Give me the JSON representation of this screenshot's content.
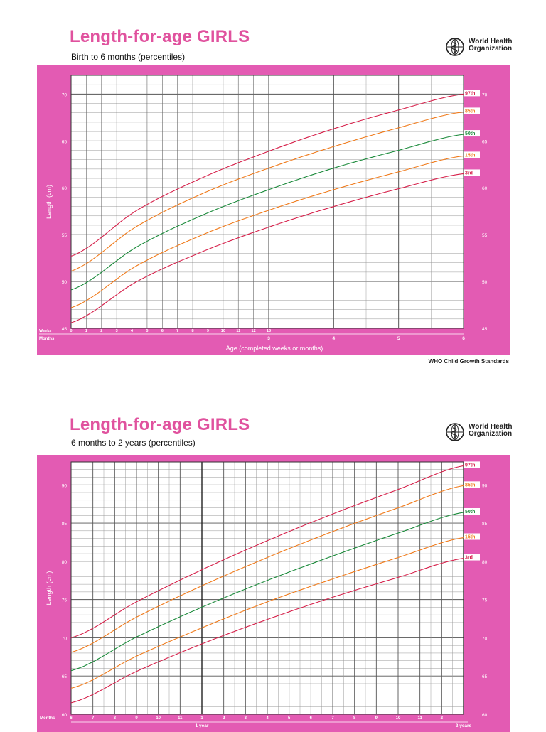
{
  "page": {
    "footnote": "WHO Child Growth Standards",
    "org_line1": "World Health",
    "org_line2": "Organization"
  },
  "colors": {
    "frame": "#e35bb3",
    "title": "#e0529e",
    "p97": "#d6204a",
    "p85": "#f07a1a",
    "p50": "#1a8a3a",
    "p15": "#f07a1a",
    "p3": "#d6204a"
  },
  "chart_data": [
    {
      "type": "line",
      "title": "Length-for-age GIRLS",
      "subtitle": "Birth to 6 months (percentiles)",
      "ylabel": "Length (cm)",
      "xlabel": "Age (completed weeks or months)",
      "ylim": [
        45,
        72
      ],
      "xlim_months": [
        0,
        6
      ],
      "yticks": [
        45,
        50,
        55,
        60,
        65,
        70
      ],
      "weeks_label": "Weeks",
      "months_label": "Months",
      "week_ticks": [
        "0",
        "1",
        "2",
        "3",
        "4",
        "5",
        "6",
        "7",
        "8",
        "9",
        "10",
        "11",
        "12",
        "13"
      ],
      "month_ticks": [
        "3",
        "4",
        "5",
        "6"
      ],
      "grid": true,
      "legend_placement": "right-end",
      "series": [
        {
          "name": "97th",
          "color_key": "p97",
          "x": [
            0,
            1,
            2,
            3,
            4,
            5,
            6
          ],
          "values": [
            52.7,
            57.6,
            61.1,
            63.9,
            66.3,
            68.3,
            70.0
          ]
        },
        {
          "name": "85th",
          "color_key": "p85",
          "x": [
            0,
            1,
            2,
            3,
            4,
            5,
            6
          ],
          "values": [
            51.1,
            55.9,
            59.4,
            62.1,
            64.4,
            66.4,
            68.1
          ]
        },
        {
          "name": "50th",
          "color_key": "p50",
          "x": [
            0,
            1,
            2,
            3,
            4,
            5,
            6
          ],
          "values": [
            49.1,
            53.7,
            57.1,
            59.8,
            62.1,
            64.0,
            65.7
          ]
        },
        {
          "name": "15th",
          "color_key": "p15",
          "x": [
            0,
            1,
            2,
            3,
            4,
            5,
            6
          ],
          "values": [
            47.2,
            51.7,
            55.0,
            57.6,
            59.8,
            61.7,
            63.4
          ]
        },
        {
          "name": "3rd",
          "color_key": "p3",
          "x": [
            0,
            1,
            2,
            3,
            4,
            5,
            6
          ],
          "values": [
            45.6,
            50.0,
            53.2,
            55.8,
            58.0,
            59.9,
            61.5
          ]
        }
      ]
    },
    {
      "type": "line",
      "title": "Length-for-age GIRLS",
      "subtitle": "6 months to 2 years (percentiles)",
      "ylabel": "Length (cm)",
      "xlabel": "",
      "ylim": [
        60,
        93
      ],
      "xlim_months": [
        6,
        24
      ],
      "yticks": [
        60,
        65,
        70,
        75,
        80,
        85,
        90
      ],
      "months_label": "Months",
      "month_ticks": [
        "6",
        "7",
        "8",
        "9",
        "10",
        "11",
        "1",
        "2",
        "3",
        "4",
        "5",
        "6",
        "7",
        "8",
        "9",
        "10",
        "11",
        "2"
      ],
      "year_labels": [
        {
          "month": 12,
          "label": "1 year"
        },
        {
          "month": 24,
          "label": "2 years"
        }
      ],
      "grid": true,
      "legend_placement": "right-end",
      "series": [
        {
          "name": "97th",
          "color_key": "p97",
          "x": [
            6,
            9,
            12,
            15,
            18,
            21,
            24
          ],
          "values": [
            70.0,
            74.7,
            78.9,
            82.7,
            86.2,
            89.4,
            92.5
          ]
        },
        {
          "name": "85th",
          "color_key": "p85",
          "x": [
            6,
            9,
            12,
            15,
            18,
            21,
            24
          ],
          "values": [
            68.1,
            72.7,
            76.8,
            80.5,
            83.9,
            87.0,
            89.9
          ]
        },
        {
          "name": "50th",
          "color_key": "p50",
          "x": [
            6,
            9,
            12,
            15,
            18,
            21,
            24
          ],
          "values": [
            65.7,
            70.1,
            74.0,
            77.5,
            80.7,
            83.7,
            86.4
          ]
        },
        {
          "name": "15th",
          "color_key": "p15",
          "x": [
            6,
            9,
            12,
            15,
            18,
            21,
            24
          ],
          "values": [
            63.4,
            67.6,
            71.3,
            74.7,
            77.7,
            80.5,
            83.1
          ]
        },
        {
          "name": "3rd",
          "color_key": "p3",
          "x": [
            6,
            9,
            12,
            15,
            18,
            21,
            24
          ],
          "values": [
            61.5,
            65.6,
            69.2,
            72.4,
            75.3,
            77.9,
            80.4
          ]
        }
      ]
    }
  ]
}
